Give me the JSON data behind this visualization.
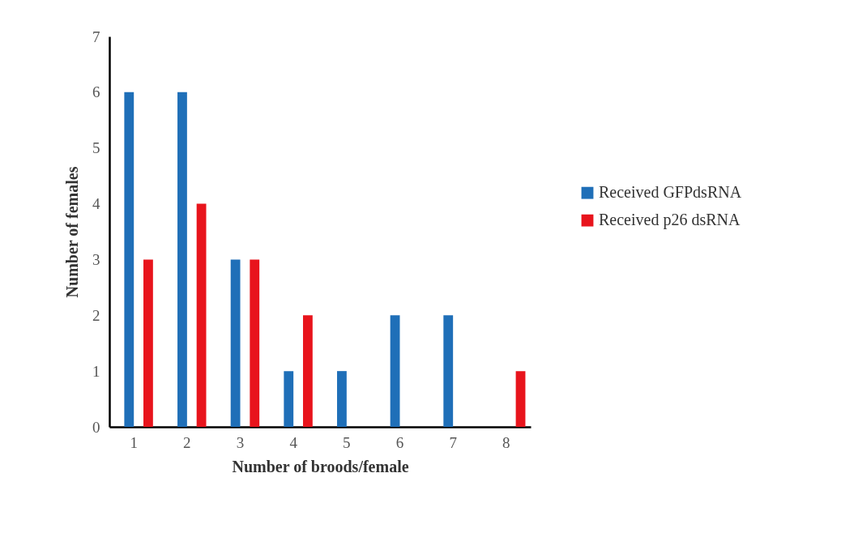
{
  "chart_data": {
    "type": "bar",
    "xlabel": "Number of broods/female",
    "ylabel": "Number of females",
    "categories": [
      "1",
      "2",
      "3",
      "4",
      "5",
      "6",
      "7",
      "8"
    ],
    "series": [
      {
        "name": "Received GFPdsRNA",
        "color": "#1f6fb8",
        "values": [
          6,
          6,
          3,
          1,
          1,
          2,
          2,
          0
        ]
      },
      {
        "name": "Received p26 dsRNA",
        "color": "#e8141c",
        "values": [
          3,
          4,
          3,
          2,
          0,
          0,
          0,
          1
        ]
      }
    ],
    "ylim": [
      0,
      7
    ],
    "yticks": [
      0,
      1,
      2,
      3,
      4,
      5,
      6,
      7
    ],
    "grid": false,
    "legend": "right"
  }
}
